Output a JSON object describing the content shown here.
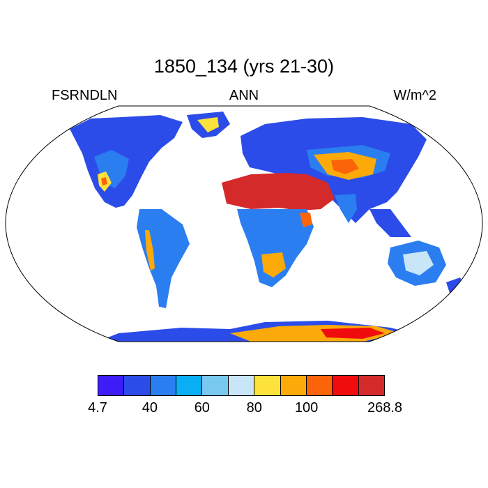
{
  "title": "1850_134 (yrs 21-30)",
  "left_label": "FSRNDLN",
  "center_label": "ANN",
  "right_label": "W/m^2",
  "colorbar": {
    "colors": [
      "#3e1cf5",
      "#2b4ce8",
      "#2b7ef0",
      "#0aaef5",
      "#78c8f0",
      "#c8e6f8",
      "#fce23a",
      "#fcaa0a",
      "#fc640a",
      "#f00c0c",
      "#d42a2a"
    ],
    "labels": [
      "4.7",
      "40",
      "60",
      "80",
      "100",
      "268.8"
    ]
  },
  "palette": {
    "ocean": "#ffffff",
    "outline": "#000000",
    "sahara": "#d42a2a",
    "antarctic_core": "#f00c0c"
  }
}
